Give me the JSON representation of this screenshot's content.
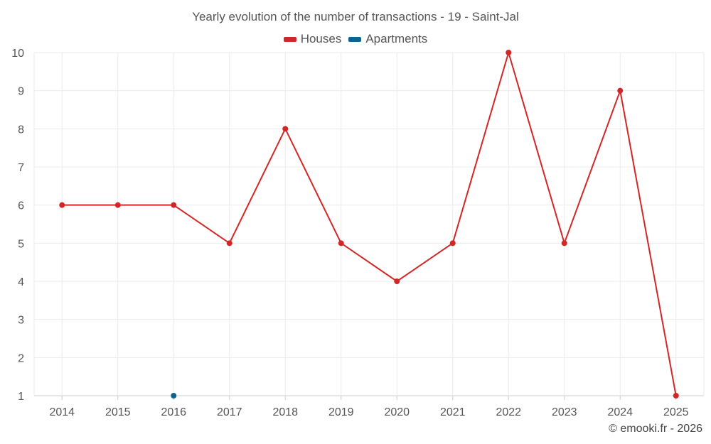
{
  "chart_data": {
    "type": "line",
    "title": "Yearly evolution of the number of transactions - 19 - Saint-Jal",
    "categories": [
      "2014",
      "2015",
      "2016",
      "2017",
      "2018",
      "2019",
      "2020",
      "2021",
      "2022",
      "2023",
      "2024",
      "2025"
    ],
    "series": [
      {
        "name": "Houses",
        "color": "#d32626",
        "values": [
          6,
          6,
          6,
          5,
          8,
          5,
          4,
          5,
          10,
          5,
          9,
          1
        ]
      },
      {
        "name": "Apartments",
        "color": "#0a6496",
        "values": [
          null,
          null,
          1,
          null,
          null,
          null,
          null,
          null,
          null,
          null,
          null,
          null
        ]
      }
    ],
    "ylim": [
      1,
      10
    ],
    "yticks": [
      1,
      2,
      3,
      4,
      5,
      6,
      7,
      8,
      9,
      10
    ],
    "xlabel": "",
    "ylabel": "",
    "legend_position": "top-center",
    "grid": true
  },
  "credit": "© emooki.fr - 2026"
}
